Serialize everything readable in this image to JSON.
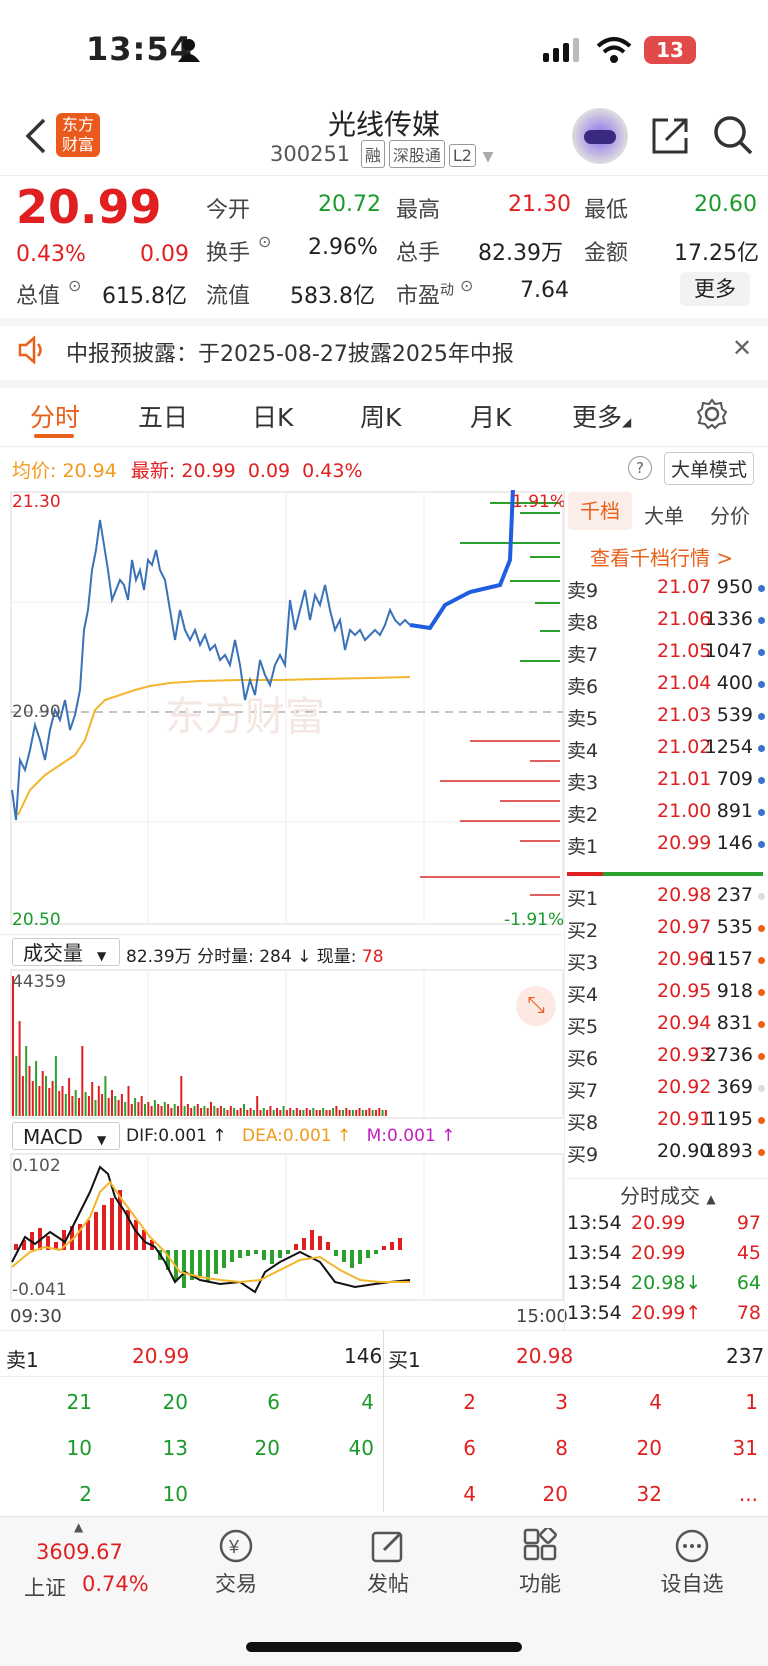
{
  "status": {
    "time": "13:54",
    "battery": "13"
  },
  "header": {
    "back_icon": "chevron-left-icon",
    "logo_text": "东方财富",
    "stock_name": "光线传媒",
    "stock_code": "300251",
    "tags": [
      "融",
      "深股通",
      "L2"
    ],
    "share_icon": "share-icon",
    "search_icon": "search-icon"
  },
  "quote": {
    "price": "20.99",
    "change_pct": "0.43%",
    "change": "0.09",
    "open_label": "今开",
    "open": "20.72",
    "high_label": "最高",
    "high": "21.30",
    "low_label": "最低",
    "low": "20.60",
    "turnover_label": "换手",
    "turnover": "2.96%",
    "volume_label": "总手",
    "volume": "82.39万",
    "amount_label": "金额",
    "amount": "17.25亿",
    "mcap_label": "总值",
    "mcap": "615.8亿",
    "float_label": "流值",
    "float": "583.8亿",
    "pe_label": "市盈",
    "pe_sup": "动",
    "pe": "7.64",
    "more_button": "更多"
  },
  "notice": {
    "text": "中报预披露：于2025-08-27披露2025年中报"
  },
  "tabs": {
    "items": [
      "分时",
      "五日",
      "日K",
      "周K",
      "月K",
      "更多"
    ],
    "active": 0
  },
  "chart_info": {
    "avg_label": "均价:",
    "avg": "20.94",
    "latest_label": "最新:",
    "latest": "20.99",
    "latest_chg": "0.09",
    "latest_pct": "0.43%",
    "big_order_mode": "大单模式",
    "y_top": "21.30",
    "y_mid": "20.90",
    "y_bottom": "20.50",
    "pct_top": "1.91%",
    "pct_bottom": "-1.91%",
    "watermark": "东方财富"
  },
  "volume_bar": {
    "label": "成交量",
    "total": "82.39万",
    "fen_label": "分时量:",
    "fen": "284",
    "now_label": "现量:",
    "now": "78",
    "max": "44359"
  },
  "macd": {
    "label": "MACD",
    "dif": "DIF:0.001 ↑",
    "dea": "DEA:0.001 ↑",
    "m": "M:0.001 ↑",
    "y_top": "0.102",
    "y_bottom": "-0.041",
    "t_start": "09:30",
    "t_end": "15:00"
  },
  "order_book": {
    "tabs": [
      "千档",
      "大单",
      "分价"
    ],
    "view_link": "查看千档行情 >",
    "asks": [
      {
        "label": "卖9",
        "price": "21.07",
        "vol": "950"
      },
      {
        "label": "卖8",
        "price": "21.06",
        "vol": "1336"
      },
      {
        "label": "卖7",
        "price": "21.05",
        "vol": "1047"
      },
      {
        "label": "卖6",
        "price": "21.04",
        "vol": "400"
      },
      {
        "label": "卖5",
        "price": "21.03",
        "vol": "539"
      },
      {
        "label": "卖4",
        "price": "21.02",
        "vol": "1254"
      },
      {
        "label": "卖3",
        "price": "21.01",
        "vol": "709"
      },
      {
        "label": "卖2",
        "price": "21.00",
        "vol": "891"
      },
      {
        "label": "卖1",
        "price": "20.99",
        "vol": "146"
      }
    ],
    "bids": [
      {
        "label": "买1",
        "price": "20.98",
        "vol": "237"
      },
      {
        "label": "买2",
        "price": "20.97",
        "vol": "535"
      },
      {
        "label": "买3",
        "price": "20.96",
        "vol": "1157"
      },
      {
        "label": "买4",
        "price": "20.95",
        "vol": "918"
      },
      {
        "label": "买5",
        "price": "20.94",
        "vol": "831"
      },
      {
        "label": "买6",
        "price": "20.93",
        "vol": "2736"
      },
      {
        "label": "买7",
        "price": "20.92",
        "vol": "369"
      },
      {
        "label": "买8",
        "price": "20.91",
        "vol": "1195"
      },
      {
        "label": "买9",
        "price": "20.90",
        "vol": "1893"
      }
    ],
    "ticks_title": "分时成交",
    "ticks": [
      {
        "time": "13:54",
        "price": "20.99",
        "vol": "97"
      },
      {
        "time": "13:54",
        "price": "20.99",
        "vol": "45"
      },
      {
        "time": "13:54",
        "price": "20.98↓",
        "vol": "64"
      },
      {
        "time": "13:54",
        "price": "20.99↑",
        "vol": "78"
      }
    ]
  },
  "queue": {
    "sell_label": "卖1",
    "sell_price": "20.99",
    "sell_vol": "146",
    "buy_label": "买1",
    "buy_price": "20.98",
    "buy_vol": "237",
    "sell_rows": [
      [
        "21",
        "20",
        "6",
        "4"
      ],
      [
        "10",
        "13",
        "20",
        "40"
      ],
      [
        "2",
        "10",
        "",
        ""
      ]
    ],
    "buy_rows": [
      [
        "2",
        "3",
        "4",
        "1"
      ],
      [
        "6",
        "8",
        "20",
        "31"
      ],
      [
        "4",
        "20",
        "32",
        "..."
      ]
    ]
  },
  "bottom_nav": {
    "index_value": "3609.67",
    "index_name": "上证",
    "index_pct": "0.74%",
    "items": [
      "交易",
      "发帖",
      "功能",
      "设自选"
    ]
  }
}
